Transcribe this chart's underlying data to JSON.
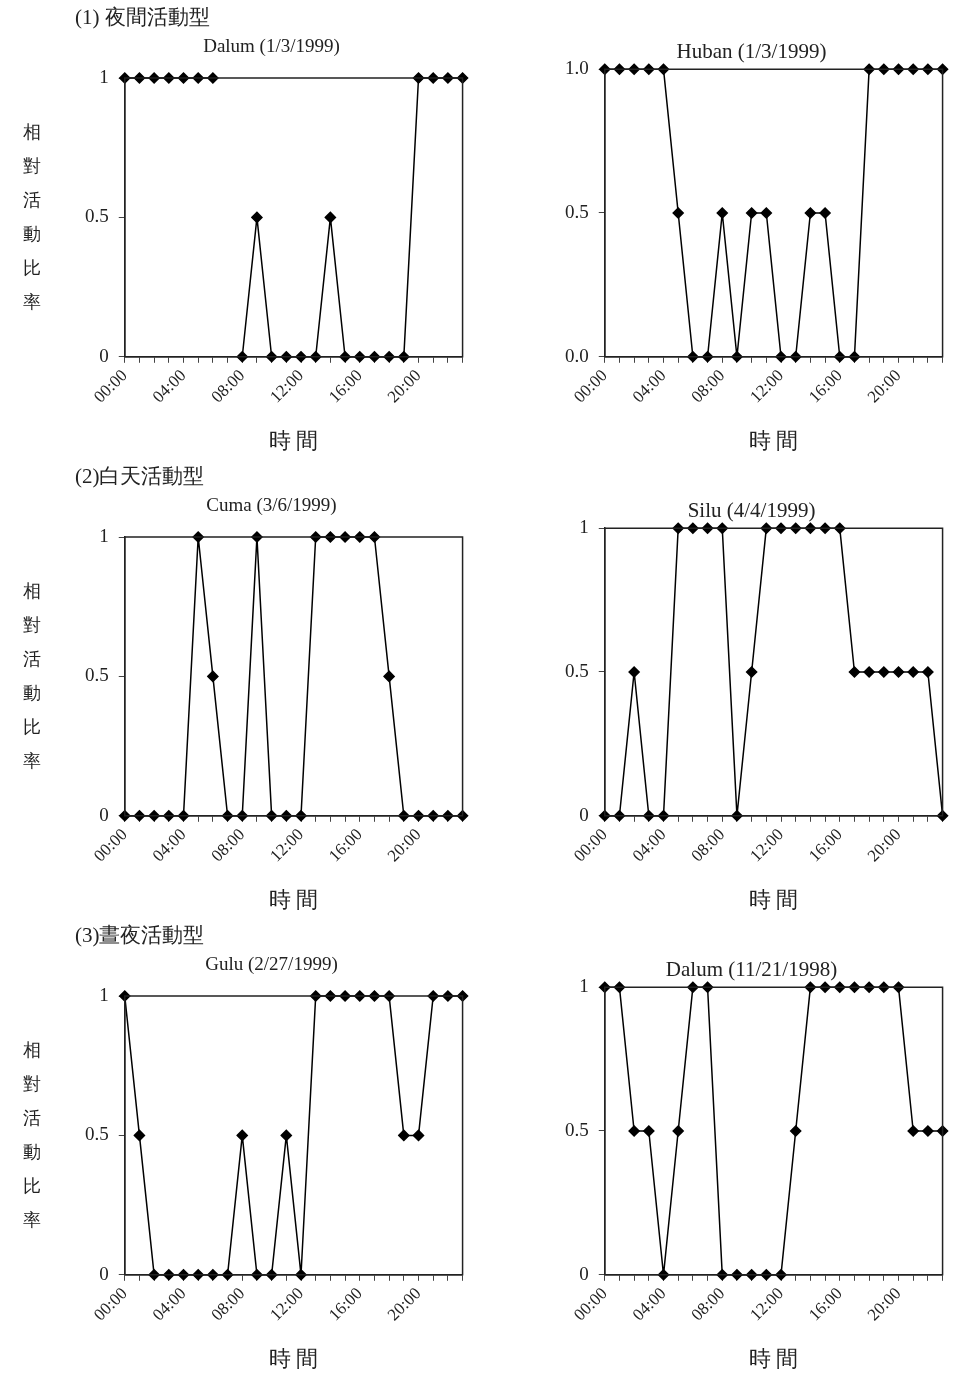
{
  "chart_data": [
    {
      "type": "line",
      "title": "(1) 夜間活動型",
      "subtitle": "Dalum (1/3/1999)",
      "xlabel": "時 間",
      "ylabel": "相對活動比率",
      "categories": [
        "00:00",
        null,
        null,
        null,
        "04:00",
        null,
        null,
        null,
        "08:00",
        null,
        null,
        null,
        "12:00",
        null,
        null,
        null,
        "16:00",
        null,
        null,
        null,
        "20:00",
        null,
        null,
        null
      ],
      "series": [
        {
          "color": "#000000",
          "values": [
            1,
            1,
            1,
            1,
            1,
            1,
            1,
            null,
            0,
            0.5,
            0,
            0,
            0,
            0,
            0.5,
            0,
            0,
            0,
            0,
            0,
            1,
            1,
            1,
            1
          ]
        }
      ],
      "ylim": [
        0,
        1
      ],
      "yticks": [
        0,
        0.5,
        1
      ],
      "marker": "diamond",
      "grid": false
    },
    {
      "type": "line",
      "title": "Huban (1/3/1999)",
      "xlabel": "時 間",
      "categories": [
        "00:00",
        null,
        null,
        null,
        "04:00",
        null,
        null,
        null,
        "08:00",
        null,
        null,
        null,
        "12:00",
        null,
        null,
        null,
        "16:00",
        null,
        null,
        null,
        "20:00",
        null,
        null,
        null
      ],
      "series": [
        {
          "color": "#000000",
          "values": [
            1,
            1,
            1,
            1,
            1,
            0.5,
            0,
            0,
            0.5,
            0,
            0.5,
            0.5,
            0,
            0,
            0.5,
            0.5,
            0,
            0,
            1,
            1,
            1,
            1,
            1,
            1
          ]
        }
      ],
      "ylim": [
        0,
        1
      ],
      "yticks": [
        {
          "value": 0,
          "label": "0.0"
        },
        {
          "value": 0.5,
          "label": "0.5"
        },
        {
          "value": 1,
          "label": "1.0"
        }
      ],
      "marker": "diamond",
      "grid": false
    },
    {
      "type": "line",
      "title": "(2)白天活動型",
      "subtitle": "Cuma (3/6/1999)",
      "xlabel": "時 間",
      "ylabel": "相對活動比率",
      "categories": [
        "00:00",
        null,
        null,
        null,
        "04:00",
        null,
        null,
        null,
        "08:00",
        null,
        null,
        null,
        "12:00",
        null,
        null,
        null,
        "16:00",
        null,
        null,
        null,
        "20:00",
        null,
        null,
        null
      ],
      "series": [
        {
          "color": "#000000",
          "values": [
            0,
            0,
            0,
            0,
            0,
            1,
            0.5,
            0,
            0,
            1,
            0,
            0,
            0,
            1,
            1,
            1,
            1,
            1,
            0.5,
            0,
            0,
            0,
            0,
            0
          ]
        }
      ],
      "ylim": [
        0,
        1
      ],
      "yticks": [
        0,
        0.5,
        1
      ],
      "marker": "diamond",
      "grid": false
    },
    {
      "type": "line",
      "title": "Silu (4/4/1999)",
      "xlabel": "時 間",
      "categories": [
        "00:00",
        null,
        null,
        null,
        "04:00",
        null,
        null,
        null,
        "08:00",
        null,
        null,
        null,
        "12:00",
        null,
        null,
        null,
        "16:00",
        null,
        null,
        null,
        "20:00",
        null,
        null,
        null
      ],
      "series": [
        {
          "color": "#000000",
          "values": [
            0,
            0,
            0.5,
            0,
            0,
            1,
            1,
            1,
            1,
            0,
            0.5,
            1,
            1,
            1,
            1,
            1,
            1,
            0.5,
            0.5,
            0.5,
            0.5,
            0.5,
            0.5,
            0
          ]
        }
      ],
      "ylim": [
        0,
        1
      ],
      "yticks": [
        0,
        0.5,
        1
      ],
      "marker": "diamond",
      "grid": false
    },
    {
      "type": "line",
      "title": "(3)晝夜活動型",
      "subtitle": "Gulu (2/27/1999)",
      "xlabel": "時 間",
      "ylabel": "相對活動比率",
      "categories": [
        "00:00",
        null,
        null,
        null,
        "04:00",
        null,
        null,
        null,
        "08:00",
        null,
        null,
        null,
        "12:00",
        null,
        null,
        null,
        "16:00",
        null,
        null,
        null,
        "20:00",
        null,
        null,
        null
      ],
      "series": [
        {
          "color": "#000000",
          "values": [
            1,
            0.5,
            0,
            0,
            0,
            0,
            0,
            0,
            0.5,
            0,
            0,
            0.5,
            0,
            1,
            1,
            1,
            1,
            1,
            1,
            0.5,
            0.5,
            1,
            1,
            1
          ]
        }
      ],
      "ylim": [
        0,
        1
      ],
      "yticks": [
        0,
        0.5,
        1
      ],
      "marker": "diamond",
      "grid": false
    },
    {
      "type": "line",
      "title": "Dalum (11/21/1998)",
      "xlabel": "時 間",
      "categories": [
        "00:00",
        null,
        null,
        null,
        "04:00",
        null,
        null,
        null,
        "08:00",
        null,
        null,
        null,
        "12:00",
        null,
        null,
        null,
        "16:00",
        null,
        null,
        null,
        "20:00",
        null,
        null,
        null
      ],
      "series": [
        {
          "color": "#000000",
          "values": [
            1,
            1,
            0.5,
            0.5,
            0,
            0.5,
            1,
            1,
            0,
            0,
            0,
            0,
            0,
            0.5,
            1,
            1,
            1,
            1,
            1,
            1,
            1,
            0.5,
            0.5,
            0.5
          ]
        }
      ],
      "ylim": [
        0,
        1
      ],
      "yticks": [
        0,
        0.5,
        1
      ],
      "marker": "diamond",
      "grid": false
    }
  ]
}
